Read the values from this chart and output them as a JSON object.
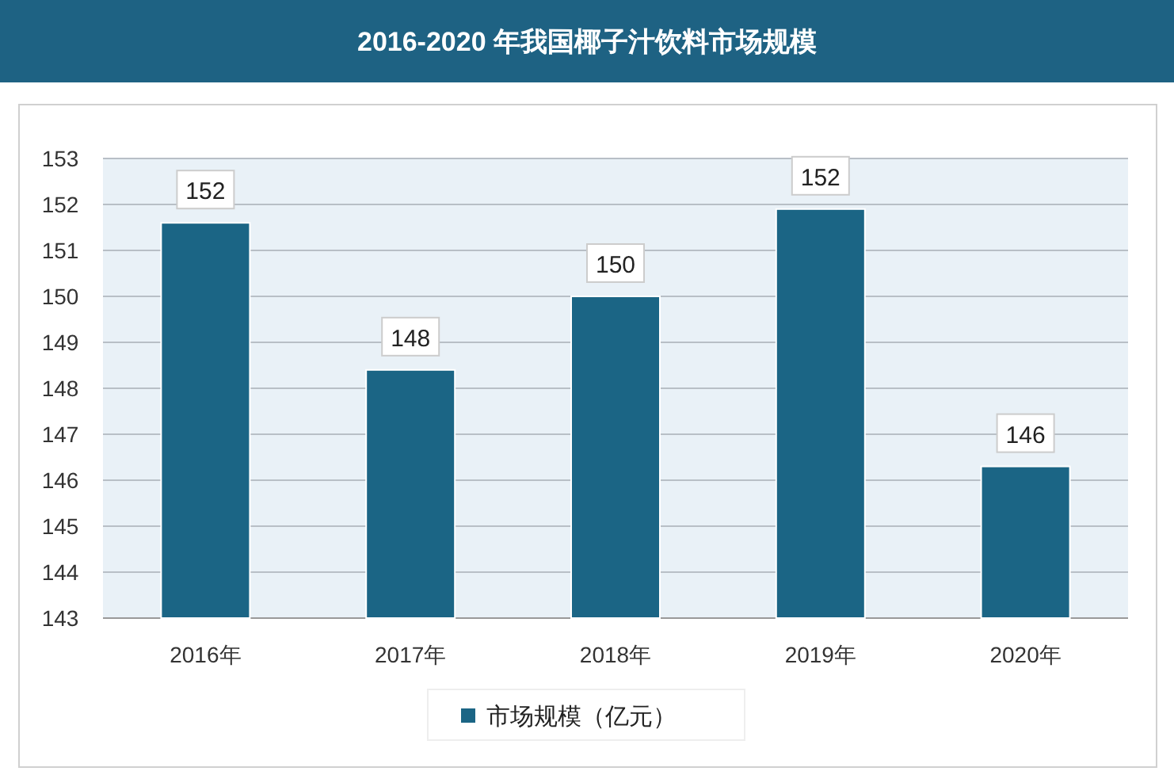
{
  "chart_data": {
    "type": "bar",
    "title": "2016-2020 年我国椰子汁饮料市场规模",
    "categories": [
      "2016年",
      "2017年",
      "2018年",
      "2019年",
      "2020年"
    ],
    "series": [
      {
        "name": "市场规模（亿元）",
        "color": "#1b6585",
        "values": [
          151.6,
          148.4,
          150.0,
          151.9,
          146.3
        ],
        "value_labels": [
          "152",
          "148",
          "150",
          "152",
          "146"
        ]
      }
    ],
    "ylim": [
      143,
      153
    ],
    "yticks": [
      143,
      144,
      145,
      146,
      147,
      148,
      149,
      150,
      151,
      152,
      153
    ],
    "grid": "y",
    "legend": "bottom"
  }
}
